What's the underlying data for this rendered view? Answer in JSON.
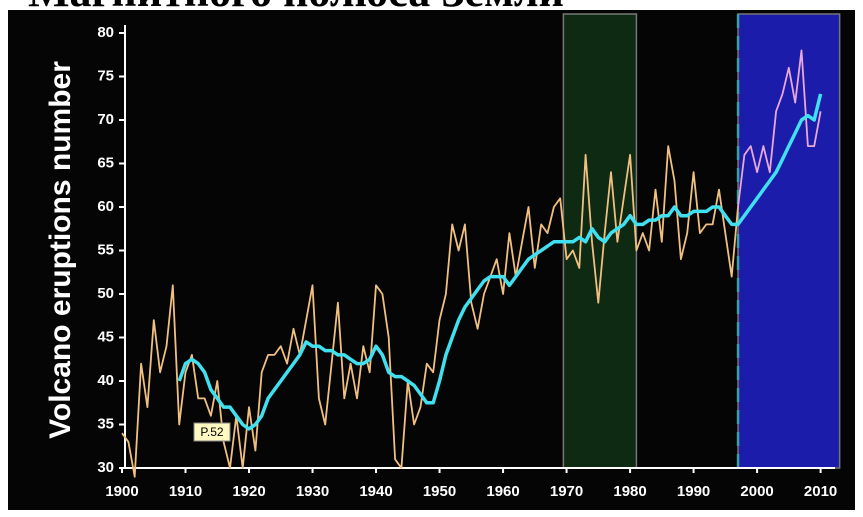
{
  "chart_data": {
    "type": "line",
    "title": "Магнитного полюса Земли",
    "y_label": "Volcano eruptions number",
    "annotation": "P.52",
    "xlim": [
      1900,
      2014
    ],
    "ylim": [
      30,
      80
    ],
    "xticks": [
      1900,
      1910,
      1920,
      1930,
      1940,
      1950,
      1960,
      1970,
      1980,
      1990,
      2000,
      2010
    ],
    "yticks": [
      30,
      35,
      40,
      45,
      50,
      55,
      60,
      65,
      70,
      75,
      80
    ],
    "bands": [
      {
        "from": 1969.5,
        "to": 1981,
        "color": "#0e2a12"
      },
      {
        "from": 1997,
        "to": 2013,
        "color": "#1c1caa"
      }
    ],
    "vline": {
      "x": 1997,
      "color": "#3aa0a0"
    },
    "series": [
      {
        "color": "#f0c080",
        "x": [
          1900,
          1901,
          1902,
          1903,
          1904,
          1905,
          1906,
          1907,
          1908,
          1909,
          1910,
          1911,
          1912,
          1913,
          1914,
          1915,
          1916,
          1917,
          1918,
          1919,
          1920,
          1921,
          1922,
          1923,
          1924,
          1925,
          1926,
          1927,
          1928,
          1929,
          1930,
          1931,
          1932,
          1933,
          1934,
          1935,
          1936,
          1937,
          1938,
          1939,
          1940,
          1941,
          1942,
          1943,
          1944,
          1945,
          1946,
          1947,
          1948,
          1949,
          1950,
          1951,
          1952,
          1953,
          1954,
          1955,
          1956,
          1957,
          1958,
          1959,
          1960,
          1961,
          1962,
          1963,
          1964,
          1965,
          1966,
          1967,
          1968,
          1969,
          1970,
          1971,
          1972,
          1973,
          1974,
          1975,
          1976,
          1977,
          1978,
          1979,
          1980,
          1981,
          1982,
          1983,
          1984,
          1985,
          1986,
          1987,
          1988,
          1989,
          1990,
          1991,
          1992,
          1993,
          1994,
          1995,
          1996,
          1997
        ],
        "values": [
          34,
          33,
          29,
          42,
          37,
          47,
          41,
          44,
          51,
          35,
          41,
          43,
          38,
          38,
          36,
          40,
          33,
          30,
          36,
          30,
          37,
          32,
          41,
          43,
          43,
          44,
          42,
          46,
          43,
          47,
          51,
          38,
          35,
          42,
          49,
          38,
          42,
          38,
          44,
          41,
          51,
          50,
          45,
          31,
          30,
          40,
          35,
          37,
          42,
          41,
          47,
          50,
          58,
          55,
          58,
          49,
          46,
          50,
          52,
          54,
          50,
          57,
          52,
          56,
          60,
          53,
          58,
          57,
          60,
          61,
          54,
          55,
          53,
          66,
          56,
          49,
          57,
          64,
          56,
          61,
          66,
          55,
          57,
          55,
          62,
          56,
          67,
          63,
          54,
          57,
          64,
          57,
          58,
          58,
          62,
          57,
          52,
          60
        ]
      },
      {
        "color": "#e8a8d8",
        "x": [
          1997,
          1998,
          1999,
          2000,
          2001,
          2002,
          2003,
          2004,
          2005,
          2006,
          2007,
          2008,
          2009,
          2010
        ],
        "values": [
          60,
          66,
          67,
          64,
          67,
          64,
          71,
          73,
          76,
          72,
          78,
          67,
          67,
          71
        ]
      },
      {
        "color": "#40e0f0",
        "x": [
          1909,
          1910,
          1911,
          1912,
          1913,
          1914,
          1915,
          1916,
          1917,
          1918,
          1919,
          1920,
          1921,
          1922,
          1923,
          1924,
          1925,
          1926,
          1927,
          1928,
          1929,
          1930,
          1931,
          1932,
          1933,
          1934,
          1935,
          1936,
          1937,
          1938,
          1939,
          1940,
          1941,
          1942,
          1943,
          1944,
          1945,
          1946,
          1947,
          1948,
          1949,
          1950,
          1951,
          1952,
          1953,
          1954,
          1955,
          1956,
          1957,
          1958,
          1959,
          1960,
          1961,
          1962,
          1963,
          1964,
          1965,
          1966,
          1967,
          1968,
          1969,
          1970,
          1971,
          1972,
          1973,
          1974,
          1975,
          1976,
          1977,
          1978,
          1979,
          1980,
          1981,
          1982,
          1983,
          1984,
          1985,
          1986,
          1987,
          1988,
          1989,
          1990,
          1991,
          1992,
          1993,
          1994,
          1995,
          1996,
          1997,
          1998,
          1999,
          2000,
          2001,
          2002,
          2003,
          2004,
          2005,
          2006,
          2007,
          2008,
          2009,
          2010
        ],
        "values": [
          40,
          42,
          42.5,
          42,
          41,
          39,
          38,
          37,
          37,
          36,
          35,
          34.5,
          35,
          36,
          38,
          39,
          40,
          41,
          42,
          43,
          44.5,
          44,
          44,
          43.5,
          43.5,
          43,
          43,
          42.5,
          42,
          42,
          42.5,
          44,
          43,
          41,
          40.5,
          40.5,
          40,
          39.5,
          38.5,
          37.5,
          37.5,
          40,
          43,
          45,
          47,
          48.5,
          49.5,
          50.5,
          51.5,
          52,
          52,
          52,
          51,
          52,
          53,
          54,
          54.5,
          55,
          55.5,
          56,
          56,
          56,
          56,
          56.5,
          56,
          57.5,
          56.5,
          56,
          57,
          57.5,
          58,
          59,
          58,
          58,
          58.5,
          58.5,
          59,
          59,
          60,
          59,
          59,
          59.5,
          59.5,
          59.5,
          60,
          60,
          59,
          58,
          58,
          59,
          60,
          61,
          62,
          63,
          64,
          65.5,
          67,
          68.5,
          70,
          70.5,
          70,
          73
        ]
      }
    ]
  }
}
